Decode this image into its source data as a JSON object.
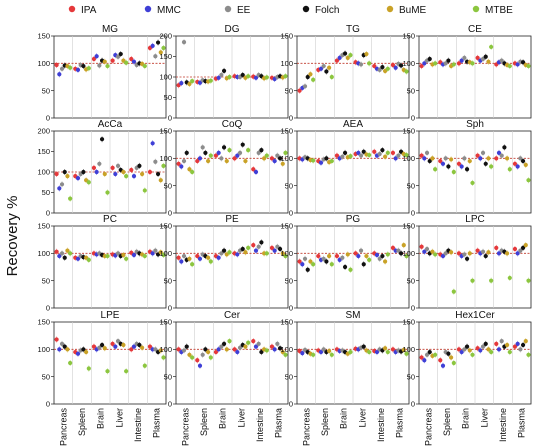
{
  "ylabel": "Recovery %",
  "legend": [
    {
      "name": "IPA",
      "color": "#e5383b"
    },
    {
      "name": "MMC",
      "color": "#3f3fd6"
    },
    {
      "name": "EE",
      "color": "#8c8c8c"
    },
    {
      "name": "Folch",
      "color": "#111111"
    },
    {
      "name": "BuME",
      "color": "#c9a227"
    },
    {
      "name": "MTBE",
      "color": "#8cc63f"
    }
  ],
  "tissues": [
    "Pancreas",
    "Spleen",
    "Brain",
    "Liver",
    "Intestine",
    "Plasma"
  ],
  "reference_line": 100,
  "chart_data": [
    {
      "type": "scatter",
      "title": "MG",
      "ylim": [
        0,
        150
      ],
      "yticks": [
        0,
        50,
        100,
        150
      ],
      "values": [
        [
          97,
          80,
          90,
          96,
          95,
          92
        ],
        [
          90,
          88,
          97,
          95,
          89,
          91
        ],
        [
          108,
          113,
          96,
          105,
          103,
          95
        ],
        [
          105,
          115,
          112,
          117,
          105,
          101
        ],
        [
          108,
          103,
          97,
          100,
          99,
          95
        ],
        [
          128,
          132,
          113,
          138,
          120,
          128
        ]
      ]
    },
    {
      "type": "scatter",
      "title": "DG",
      "ylim": [
        0,
        200
      ],
      "yticks": [
        0,
        50,
        100,
        150,
        200
      ],
      "values": [
        [
          80,
          85,
          185,
          87,
          83,
          90
        ],
        [
          88,
          86,
          92,
          90,
          89,
          91
        ],
        [
          96,
          98,
          105,
          115,
          97,
          100
        ],
        [
          102,
          100,
          100,
          105,
          98,
          102
        ],
        [
          101,
          98,
          105,
          102,
          97,
          99
        ],
        [
          98,
          95,
          100,
          102,
          99,
          102
        ]
      ]
    },
    {
      "type": "scatter",
      "title": "TG",
      "ylim": [
        0,
        150
      ],
      "yticks": [
        0,
        50,
        100,
        150
      ],
      "values": [
        [
          50,
          55,
          58,
          75,
          80,
          70
        ],
        [
          88,
          90,
          95,
          85,
          92,
          75
        ],
        [
          105,
          110,
          115,
          118,
          110,
          115
        ],
        [
          102,
          100,
          98,
          115,
          117,
          100
        ],
        [
          95,
          90,
          88,
          93,
          86,
          90
        ],
        [
          97,
          92,
          99,
          96,
          88,
          85
        ]
      ]
    },
    {
      "type": "scatter",
      "title": "CE",
      "ylim": [
        0,
        150
      ],
      "yticks": [
        0,
        50,
        100,
        150
      ],
      "values": [
        [
          95,
          100,
          105,
          108,
          98,
          100
        ],
        [
          102,
          98,
          100,
          105,
          95,
          98
        ],
        [
          100,
          105,
          110,
          103,
          102,
          100
        ],
        [
          110,
          105,
          108,
          112,
          103,
          130
        ],
        [
          98,
          102,
          105,
          100,
          97,
          95
        ],
        [
          100,
          98,
          103,
          102,
          97,
          95
        ]
      ]
    },
    {
      "type": "scatter",
      "title": "AcCa",
      "ylim": [
        0,
        200
      ],
      "yticks": [
        0,
        50,
        100,
        150,
        200
      ],
      "values": [
        [
          95,
          60,
          70,
          100,
          90,
          35
        ],
        [
          90,
          85,
          95,
          100,
          80,
          75
        ],
        [
          110,
          100,
          120,
          180,
          95,
          50
        ],
        [
          110,
          95,
          115,
          105,
          100,
          90
        ],
        [
          105,
          90,
          110,
          115,
          95,
          55
        ],
        [
          100,
          170,
          125,
          95,
          80,
          115
        ]
      ]
    },
    {
      "type": "scatter",
      "title": "CoQ",
      "ylim": [
        0,
        150
      ],
      "yticks": [
        0,
        50,
        100,
        150
      ],
      "values": [
        [
          90,
          85,
          95,
          110,
          80,
          75
        ],
        [
          95,
          100,
          120,
          110,
          95,
          105
        ],
        [
          105,
          110,
          100,
          120,
          95,
          115
        ],
        [
          100,
          105,
          110,
          125,
          95,
          115
        ],
        [
          80,
          75,
          110,
          115,
          100,
          105
        ],
        [
          100,
          95,
          105,
          100,
          90,
          110
        ]
      ]
    },
    {
      "type": "scatter",
      "title": "AEA",
      "ylim": [
        0,
        150
      ],
      "yticks": [
        0,
        50,
        100,
        150
      ],
      "values": [
        [
          100,
          98,
          102,
          100,
          97,
          96
        ],
        [
          95,
          92,
          98,
          100,
          93,
          95
        ],
        [
          105,
          100,
          103,
          110,
          102,
          104
        ],
        [
          108,
          110,
          105,
          112,
          107,
          106
        ],
        [
          112,
          105,
          108,
          115,
          103,
          110
        ],
        [
          110,
          100,
          105,
          112,
          108,
          106
        ]
      ]
    },
    {
      "type": "scatter",
      "title": "Sph",
      "ylim": [
        0,
        150
      ],
      "yticks": [
        0,
        50,
        100,
        150
      ],
      "values": [
        [
          105,
          100,
          110,
          95,
          100,
          80
        ],
        [
          95,
          90,
          100,
          85,
          98,
          75
        ],
        [
          90,
          85,
          100,
          80,
          95,
          55
        ],
        [
          105,
          100,
          110,
          90,
          100,
          85
        ],
        [
          100,
          110,
          105,
          120,
          100,
          80
        ],
        [
          90,
          85,
          100,
          95,
          88,
          60
        ]
      ]
    },
    {
      "type": "scatter",
      "title": "PC",
      "ylim": [
        0,
        150
      ],
      "yticks": [
        0,
        50,
        100,
        150
      ],
      "values": [
        [
          103,
          95,
          100,
          92,
          105,
          100
        ],
        [
          92,
          90,
          95,
          93,
          92,
          88
        ],
        [
          100,
          98,
          100,
          97,
          95,
          95
        ],
        [
          98,
          96,
          100,
          95,
          97,
          90
        ],
        [
          101,
          97,
          103,
          100,
          98,
          95
        ],
        [
          103,
          100,
          105,
          98,
          102,
          97
        ]
      ]
    },
    {
      "type": "scatter",
      "title": "PE",
      "ylim": [
        0,
        150
      ],
      "yticks": [
        0,
        50,
        100,
        150
      ],
      "values": [
        [
          92,
          85,
          95,
          88,
          90,
          80
        ],
        [
          95,
          90,
          98,
          95,
          92,
          85
        ],
        [
          95,
          92,
          100,
          105,
          98,
          102
        ],
        [
          100,
          98,
          105,
          108,
          102,
          110
        ],
        [
          115,
          105,
          112,
          120,
          100,
          100
        ],
        [
          110,
          105,
          112,
          108,
          100,
          95
        ]
      ]
    },
    {
      "type": "scatter",
      "title": "PG",
      "ylim": [
        0,
        150
      ],
      "yticks": [
        0,
        50,
        100,
        150
      ],
      "values": [
        [
          85,
          80,
          90,
          70,
          85,
          80
        ],
        [
          95,
          88,
          90,
          85,
          95,
          80
        ],
        [
          95,
          88,
          92,
          75,
          98,
          70
        ],
        [
          100,
          95,
          105,
          80,
          95,
          88
        ],
        [
          100,
          97,
          90,
          95,
          85,
          98
        ],
        [
          110,
          105,
          105,
          100,
          115,
          95
        ]
      ]
    },
    {
      "type": "scatter",
      "title": "LPC",
      "ylim": [
        0,
        150
      ],
      "yticks": [
        0,
        50,
        100,
        150
      ],
      "values": [
        [
          112,
          103,
          108,
          100,
          103,
          98
        ],
        [
          98,
          95,
          100,
          105,
          102,
          30
        ],
        [
          100,
          95,
          98,
          90,
          100,
          50
        ],
        [
          105,
          100,
          103,
          95,
          102,
          50
        ],
        [
          110,
          100,
          105,
          103,
          100,
          55
        ],
        [
          108,
          100,
          105,
          110,
          115,
          50
        ]
      ]
    },
    {
      "type": "scatter",
      "title": "LPE",
      "ylim": [
        0,
        150
      ],
      "yticks": [
        0,
        50,
        100,
        150
      ],
      "values": [
        [
          118,
          100,
          110,
          105,
          100,
          75
        ],
        [
          95,
          92,
          98,
          100,
          95,
          65
        ],
        [
          105,
          100,
          103,
          108,
          102,
          60
        ],
        [
          110,
          105,
          115,
          110,
          108,
          60
        ],
        [
          100,
          105,
          110,
          108,
          103,
          70
        ],
        [
          105,
          100,
          100,
          95,
          98,
          85
        ]
      ]
    },
    {
      "type": "scatter",
      "title": "Cer",
      "ylim": [
        0,
        150
      ],
      "yticks": [
        0,
        50,
        100,
        150
      ],
      "values": [
        [
          100,
          95,
          98,
          105,
          90,
          85
        ],
        [
          80,
          70,
          90,
          100,
          95,
          85
        ],
        [
          95,
          100,
          105,
          110,
          100,
          115
        ],
        [
          100,
          95,
          103,
          108,
          105,
          112
        ],
        [
          115,
          105,
          110,
          95,
          100,
          98
        ],
        [
          105,
          100,
          110,
          102,
          95,
          90
        ]
      ]
    },
    {
      "type": "scatter",
      "title": "SM",
      "ylim": [
        0,
        150
      ],
      "yticks": [
        0,
        50,
        100,
        150
      ],
      "values": [
        [
          97,
          93,
          99,
          95,
          92,
          90
        ],
        [
          98,
          95,
          100,
          95,
          97,
          90
        ],
        [
          100,
          97,
          98,
          95,
          92,
          95
        ],
        [
          101,
          100,
          103,
          105,
          98,
          95
        ],
        [
          97,
          95,
          100,
          98,
          102,
          95
        ],
        [
          100,
          95,
          98,
          96,
          99,
          92
        ]
      ]
    },
    {
      "type": "scatter",
      "title": "Hex1Cer",
      "ylim": [
        0,
        150
      ],
      "yticks": [
        0,
        50,
        100,
        150
      ],
      "values": [
        [
          85,
          80,
          90,
          95,
          88,
          90
        ],
        [
          80,
          70,
          95,
          92,
          85,
          75
        ],
        [
          100,
          95,
          100,
          105,
          98,
          90
        ],
        [
          102,
          98,
          105,
          110,
          100,
          95
        ],
        [
          110,
          100,
          115,
          105,
          108,
          95
        ],
        [
          105,
          110,
          100,
          108,
          115,
          90
        ]
      ]
    }
  ]
}
